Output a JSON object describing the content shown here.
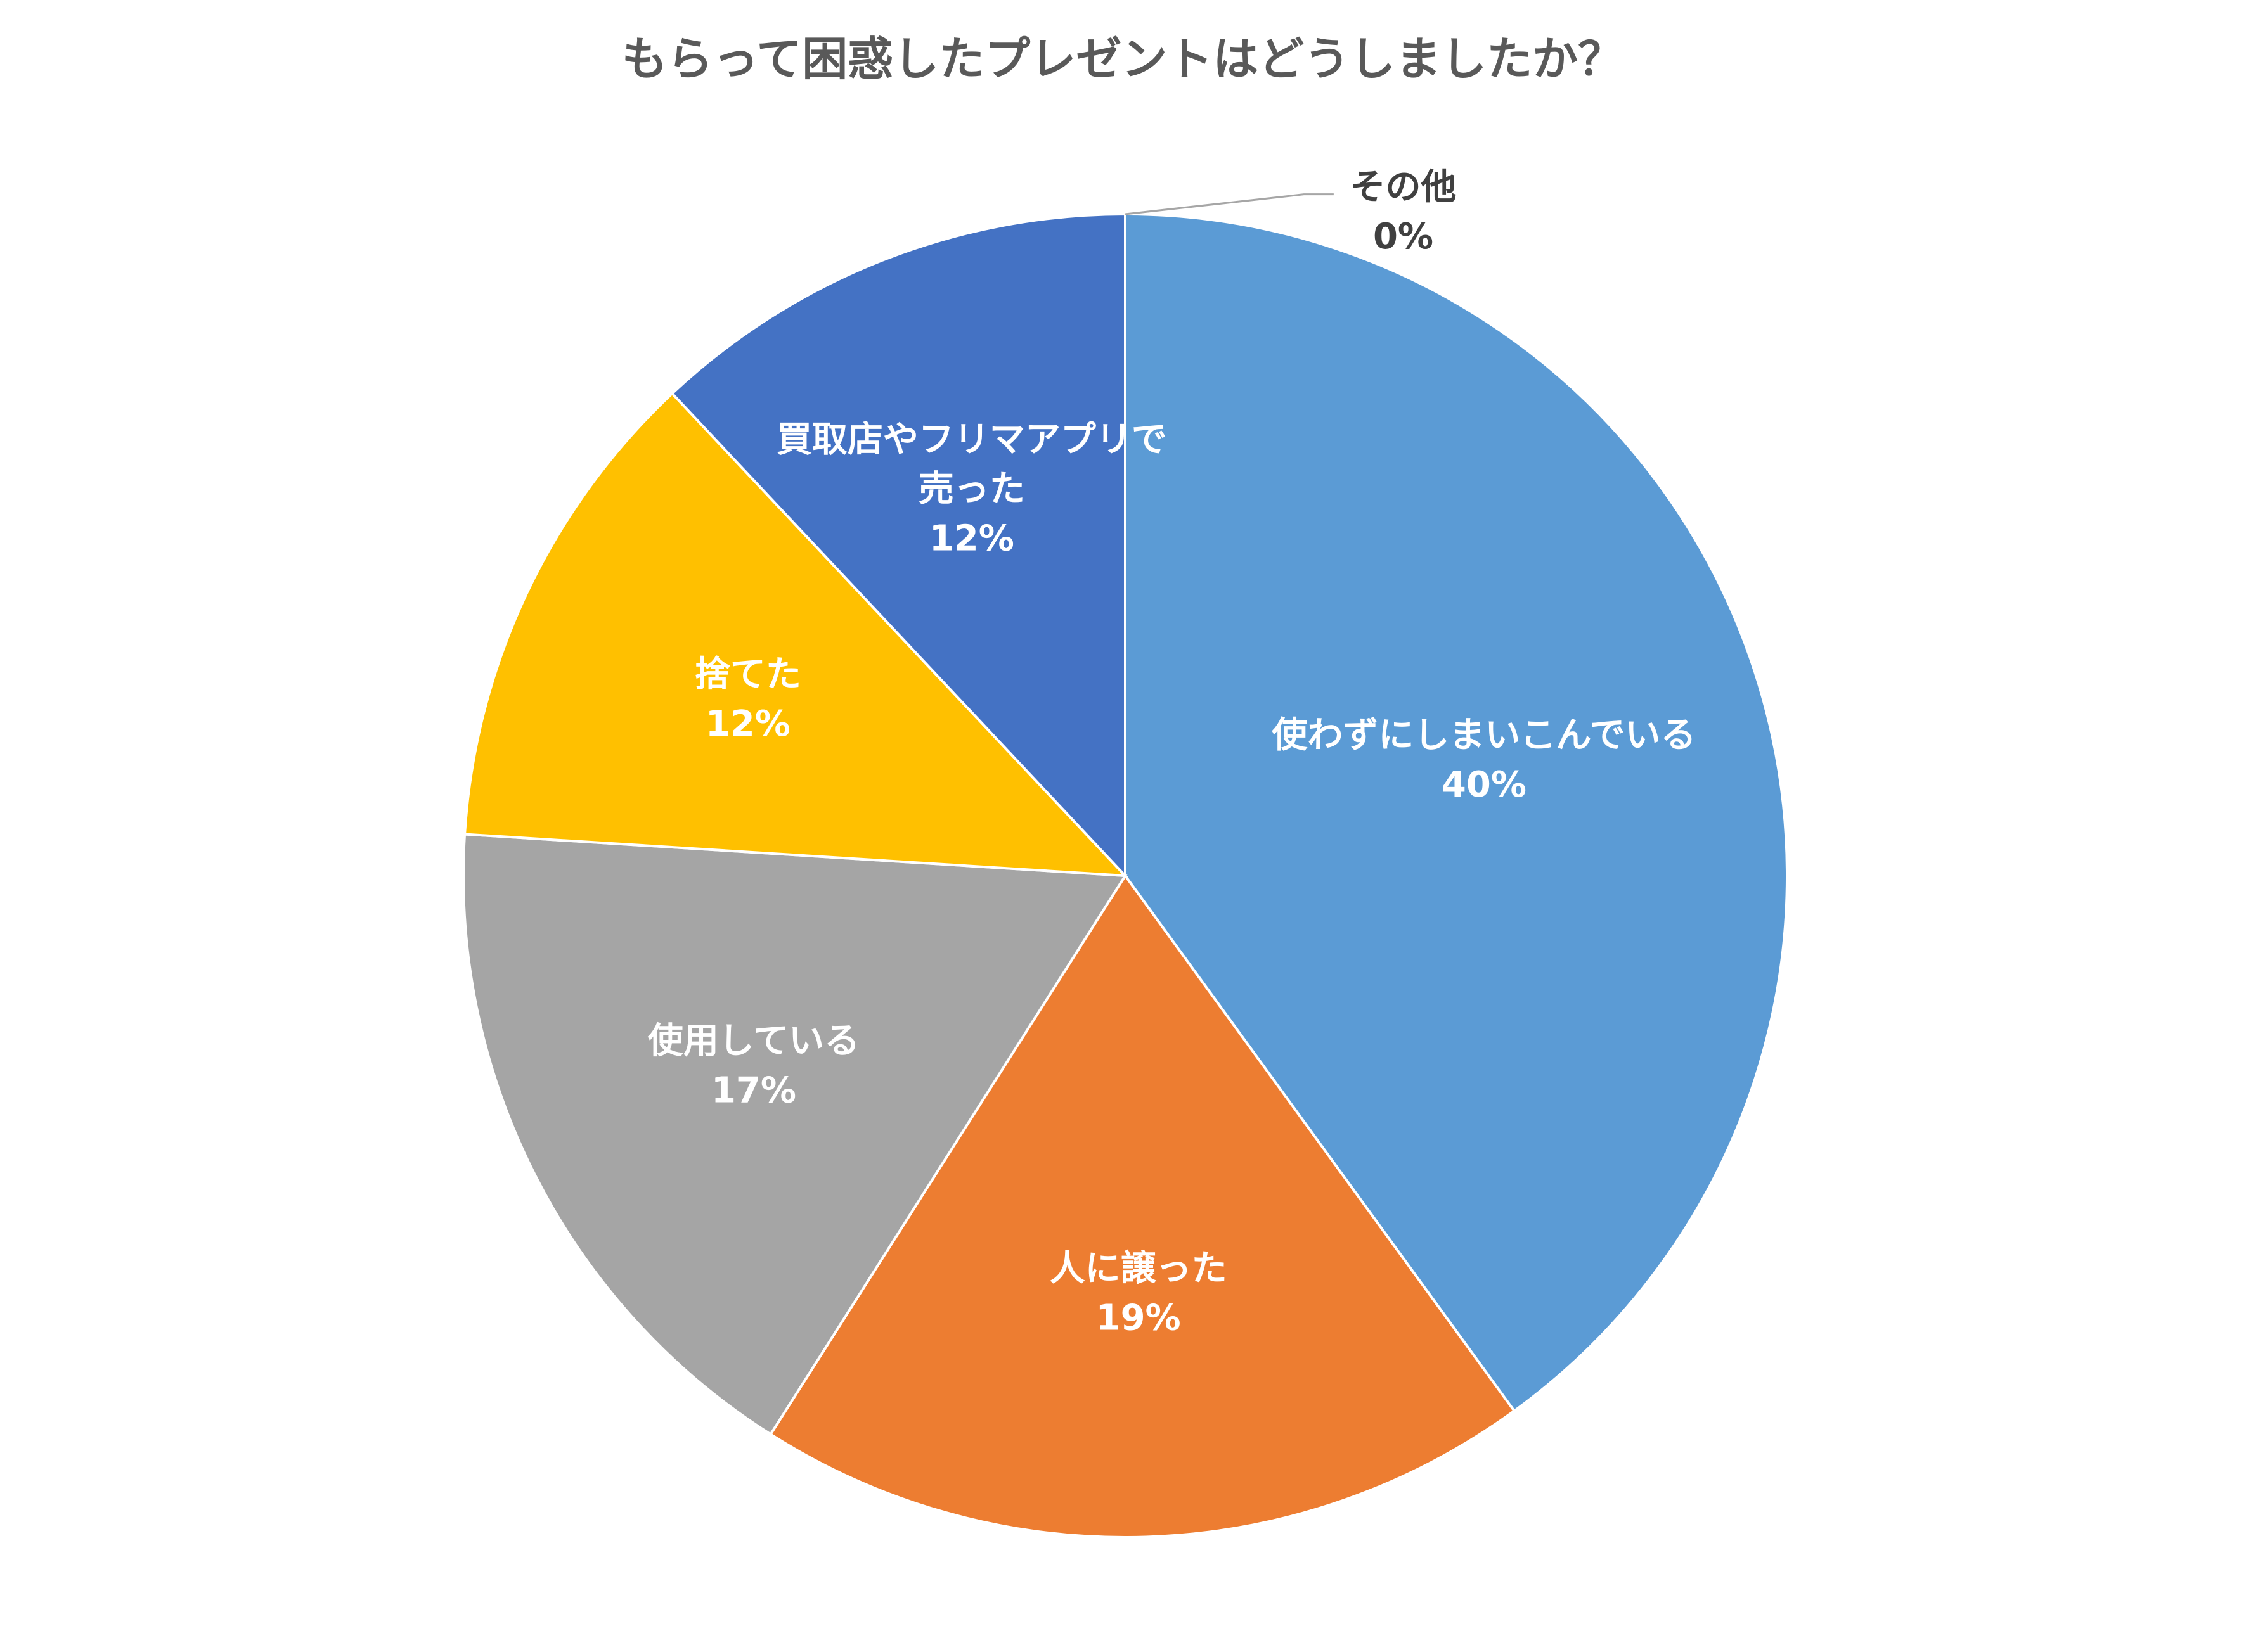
{
  "chart_data": {
    "type": "pie",
    "title": "もらって困惑したプレゼントはどうしましたか？",
    "start_angle_deg": 0,
    "direction": "clockwise",
    "slices": [
      {
        "label": "使わずにしまいこんでいる",
        "value": 40,
        "value_label": "40%",
        "color": "#5B9BD5"
      },
      {
        "label": "人に譲った",
        "value": 19,
        "value_label": "19%",
        "color": "#ED7D31"
      },
      {
        "label": "使用している",
        "value": 17,
        "value_label": "17%",
        "color": "#A5A5A5"
      },
      {
        "label": "捨てた",
        "value": 12,
        "value_label": "12%",
        "color": "#FFC000"
      },
      {
        "label": "買取店やフリマアプリで売った",
        "label_lines": [
          "買取店やフリマアプリで",
          "売った"
        ],
        "value": 12,
        "value_label": "12%",
        "color": "#4472C4"
      },
      {
        "label": "その他",
        "value": 0,
        "value_label": "0%",
        "color": "#70AD47",
        "label_position": "outside"
      }
    ]
  }
}
